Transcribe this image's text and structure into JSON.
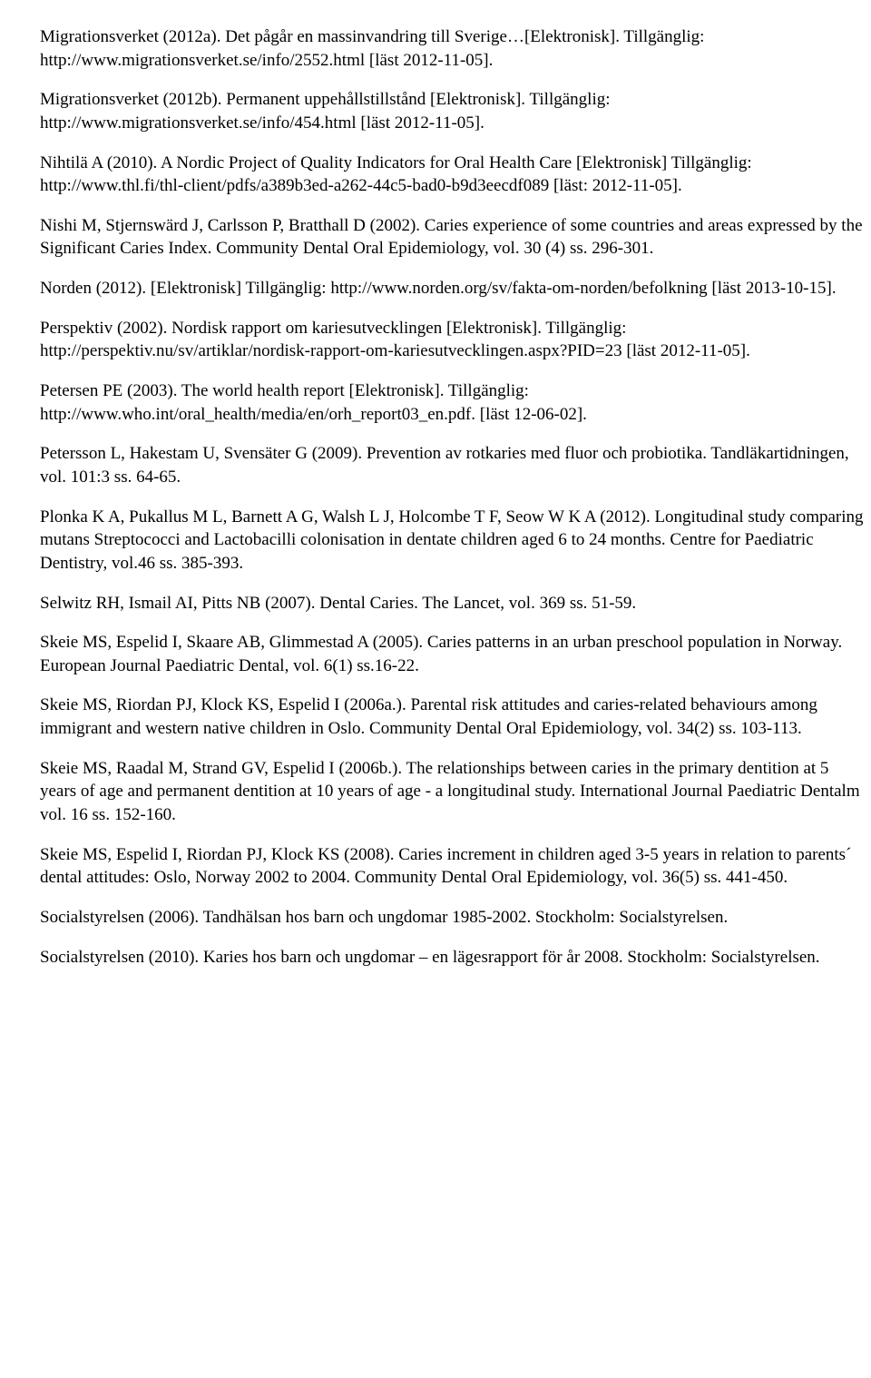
{
  "references": [
    "Migrationsverket (2012a). Det pågår en massinvandring till Sverige…[Elektronisk]. Tillgänglig: http://www.migrationsverket.se/info/2552.html [läst 2012-11-05].",
    "Migrationsverket (2012b). Permanent uppehållstillstånd [Elektronisk]. Tillgänglig: http://www.migrationsverket.se/info/454.html [läst 2012-11-05].",
    "Nihtilä  A (2010). A Nordic Project of Quality Indicators for Oral Health Care [Elektronisk] Tillgänglig: http://www.thl.fi/thl-client/pdfs/a389b3ed-a262-44c5-bad0-b9d3eecdf089 [läst: 2012-11-05].",
    "Nishi M, Stjernswärd J, Carlsson P, Bratthall D (2002). Caries experience of some countries and areas expressed by the Significant Caries Index. Community Dental Oral Epidemiology, vol. 30 (4) ss. 296-301.",
    "Norden (2012). [Elektronisk] Tillgänglig: http://www.norden.org/sv/fakta-om-norden/befolkning [läst 2013-10-15].",
    "Perspektiv (2002). Nordisk rapport om kariesutvecklingen [Elektronisk]. Tillgänglig: http://perspektiv.nu/sv/artiklar/nordisk-rapport-om-kariesutvecklingen.aspx?PID=23 [läst 2012-11-05].",
    "Petersen PE (2003). The world health report [Elektronisk]. Tillgänglig: http://www.who.int/oral_health/media/en/orh_report03_en.pdf. [läst 12-06-02].",
    "Petersson L, Hakestam U, Svensäter G (2009). Prevention av rotkaries med fluor och probiotika. Tandläkartidningen, vol. 101:3 ss. 64-65.",
    "Plonka K A, Pukallus M L, Barnett A G, Walsh L J, Holcombe T F, Seow W K A (2012). Longitudinal study comparing mutans Streptococci and Lactobacilli colonisation in dentate children aged 6 to 24 months. Centre for Paediatric Dentistry, vol.46 ss. 385-393.",
    "Selwitz RH, Ismail AI, Pitts NB (2007). Dental Caries. The Lancet, vol. 369 ss. 51-59.",
    "Skeie MS, Espelid I, Skaare AB, Glimmestad A (2005). Caries patterns in an urban preschool population in Norway. European Journal Paediatric Dental, vol. 6(1) ss.16-22.",
    "Skeie MS, Riordan PJ, Klock KS, Espelid I (2006a.). Parental risk attitudes and caries-related behaviours among immigrant and western native children in Oslo. Community Dental Oral Epidemiology, vol. 34(2) ss. 103-113.",
    "Skeie MS, Raadal M, Strand GV, Espelid I (2006b.). The relationships between caries in the primary dentition at 5 years of age and permanent dentition at 10 years of age - a longitudinal study. International Journal Paediatric Dentalm vol. 16 ss. 152-160.",
    "Skeie MS, Espelid I, Riordan PJ, Klock KS (2008). Caries increment in children aged 3-5 years in relation to parents´ dental attitudes: Oslo, Norway 2002 to 2004. Community Dental Oral Epidemiology, vol. 36(5) ss. 441-450.",
    "Socialstyrelsen (2006). Tandhälsan hos barn och ungdomar 1985-2002. Stockholm: Socialstyrelsen.",
    "Socialstyrelsen (2010). Karies hos barn och ungdomar – en lägesrapport för år 2008. Stockholm: Socialstyrelsen."
  ]
}
